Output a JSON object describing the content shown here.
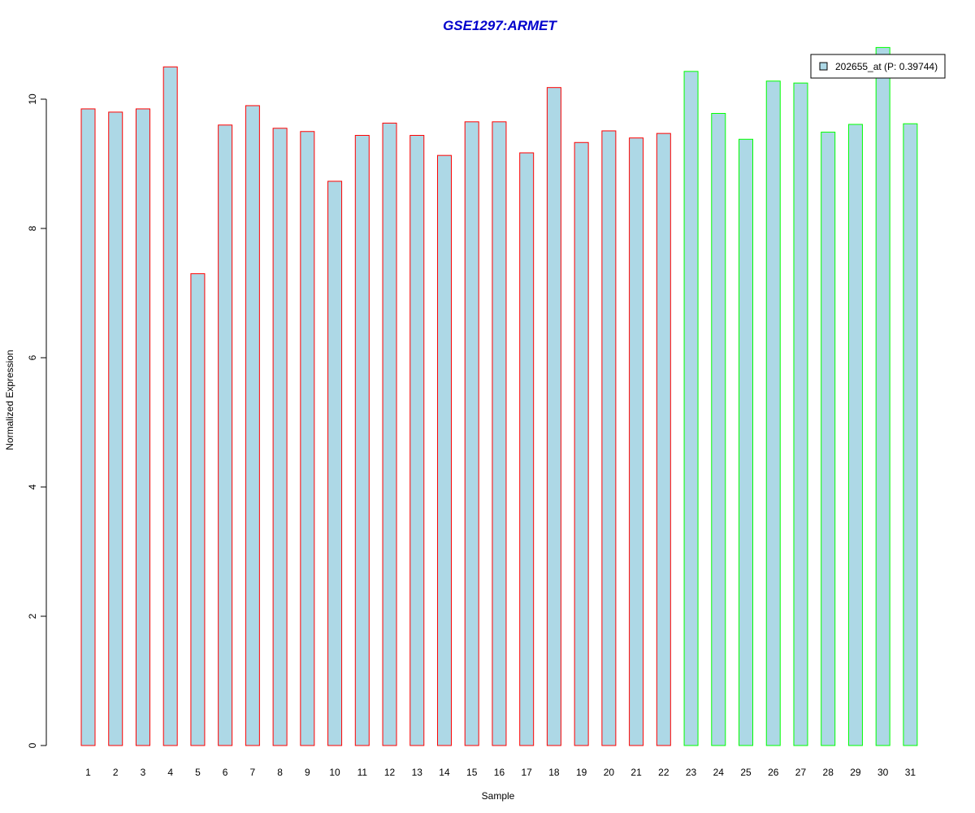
{
  "chart_data": {
    "type": "bar",
    "title": "GSE1297:ARMET",
    "xlabel": "Sample",
    "ylabel": "Normalized Expression",
    "ylim": [
      0,
      10.8
    ],
    "yticks": [
      "0",
      "2",
      "4",
      "6",
      "8",
      "10"
    ],
    "categories": [
      "1",
      "2",
      "3",
      "4",
      "5",
      "6",
      "7",
      "8",
      "9",
      "10",
      "11",
      "12",
      "13",
      "14",
      "15",
      "16",
      "17",
      "18",
      "19",
      "20",
      "21",
      "22",
      "23",
      "24",
      "25",
      "26",
      "27",
      "28",
      "29",
      "30",
      "31"
    ],
    "values": [
      9.85,
      9.8,
      9.85,
      10.5,
      7.3,
      9.6,
      9.9,
      9.55,
      9.5,
      8.73,
      9.44,
      9.63,
      9.44,
      9.13,
      9.65,
      9.65,
      9.17,
      10.18,
      9.33,
      9.51,
      9.4,
      9.47,
      10.43,
      9.78,
      9.38,
      10.28,
      10.25,
      9.49,
      9.61,
      10.8,
      9.62
    ],
    "groups": [
      "red",
      "red",
      "red",
      "red",
      "red",
      "red",
      "red",
      "red",
      "red",
      "red",
      "red",
      "red",
      "red",
      "red",
      "red",
      "red",
      "red",
      "red",
      "red",
      "red",
      "red",
      "red",
      "green",
      "green",
      "green",
      "green",
      "green",
      "green",
      "green",
      "green",
      "green"
    ],
    "legend": {
      "label": "202655_at (P: 0.39744)",
      "position": "top-right"
    },
    "grid": false
  },
  "colors": {
    "bar_fill": "#add8e6",
    "group_red": "#ff0000",
    "group_green": "#00ff00",
    "title": "#0000cc"
  }
}
